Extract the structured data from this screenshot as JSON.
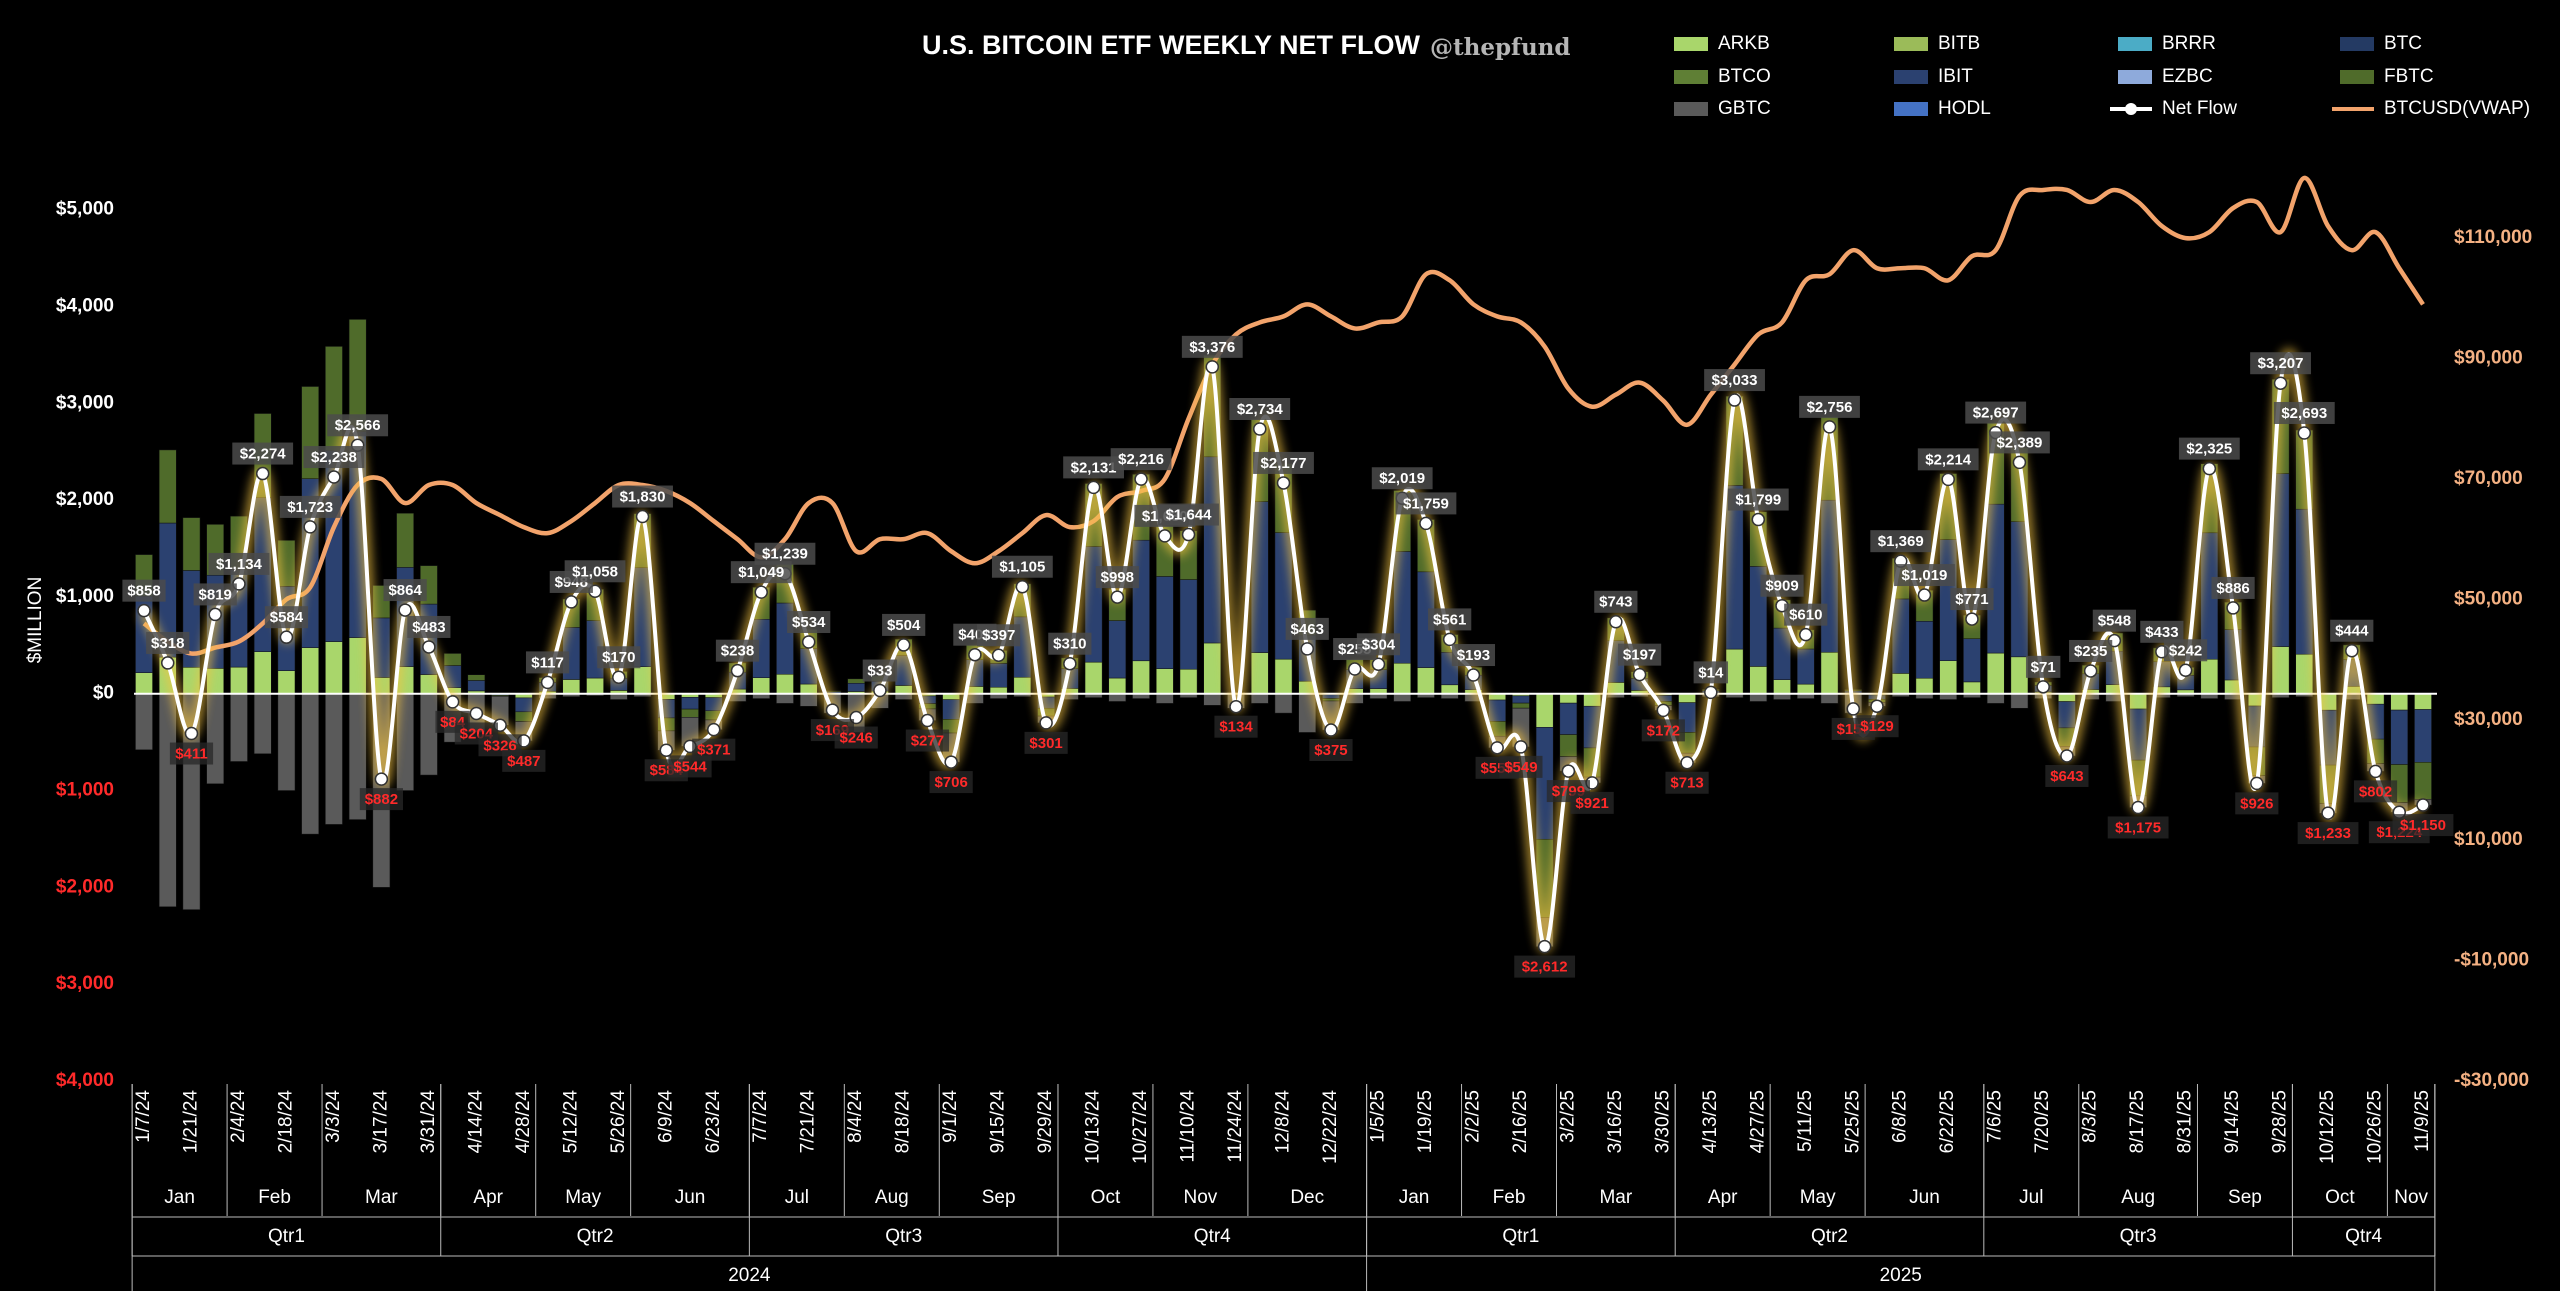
{
  "chart_data": {
    "type": "combo",
    "title": "U.S. BITCOIN ETF WEEKLY NET FLOW",
    "subtitle": "@thepfund",
    "y_label": "$MILLION",
    "categories": [
      "1/7/24",
      null,
      "1/21/24",
      null,
      "2/4/24",
      null,
      "2/18/24",
      null,
      "3/3/24",
      null,
      "3/17/24",
      null,
      "3/31/24",
      null,
      "4/14/24",
      null,
      "4/28/24",
      null,
      "5/12/24",
      null,
      "5/26/24",
      null,
      "6/9/24",
      null,
      "6/23/24",
      null,
      "7/7/24",
      null,
      "7/21/24",
      null,
      "8/4/24",
      null,
      "8/18/24",
      null,
      "9/1/24",
      null,
      "9/15/24",
      null,
      "9/29/24",
      null,
      "10/13/24",
      null,
      "10/27/24",
      null,
      "11/10/24",
      null,
      "11/24/24",
      null,
      "12/8/24",
      null,
      "12/22/24",
      null,
      "1/5/25",
      null,
      "1/19/25",
      null,
      "2/2/25",
      null,
      "2/16/25",
      null,
      "3/2/25",
      null,
      "3/16/25",
      null,
      "3/30/25",
      null,
      "4/13/25",
      null,
      "4/27/25",
      null,
      "5/11/25",
      null,
      "5/25/25",
      null,
      "6/8/25",
      null,
      "6/22/25",
      null,
      "7/6/25",
      null,
      "7/20/25",
      null,
      "8/3/25",
      null,
      "8/17/25",
      null,
      "8/31/25",
      null,
      "9/14/25",
      null,
      "9/28/25",
      null,
      "10/12/25",
      null,
      "10/26/25",
      null,
      "11/9/25"
    ],
    "months": [
      "Jan",
      "Feb",
      "Mar",
      "Apr",
      "May",
      "Jun",
      "Jul",
      "Aug",
      "Sep",
      "Oct",
      "Nov",
      "Dec",
      "Jan",
      "Feb",
      "Mar",
      "Apr",
      "May",
      "Jun",
      "Jul",
      "Aug",
      "Sep",
      "Oct",
      "Nov"
    ],
    "quarters": [
      "Qtr1",
      "Qtr2",
      "Qtr3",
      "Qtr4",
      "Qtr1",
      "Qtr2",
      "Qtr3",
      "Qtr4"
    ],
    "years": [
      "2024",
      "2025"
    ],
    "ylim": [
      -4000,
      5750
    ],
    "yticks": [
      {
        "value": -4000,
        "label": "$4,000"
      },
      {
        "value": -3000,
        "label": "$3,000"
      },
      {
        "value": -2000,
        "label": "$2,000"
      },
      {
        "value": -1000,
        "label": "$1,000"
      },
      {
        "value": 0,
        "label": "$0"
      },
      {
        "value": 1000,
        "label": "$1,000"
      },
      {
        "value": 2000,
        "label": "$2,000"
      },
      {
        "value": 3000,
        "label": "$3,000"
      },
      {
        "value": 4000,
        "label": "$4,000"
      },
      {
        "value": 5000,
        "label": "$5,000"
      }
    ],
    "y2lim": [
      -30000,
      126800
    ],
    "y2ticks": [
      {
        "value": -30000,
        "label": "-$30,000"
      },
      {
        "value": -10000,
        "label": "-$10,000"
      },
      {
        "value": 10000,
        "label": "$10,000"
      },
      {
        "value": 30000,
        "label": "$30,000"
      },
      {
        "value": 50000,
        "label": "$50,000"
      },
      {
        "value": 70000,
        "label": "$70,000"
      },
      {
        "value": 90000,
        "label": "$90,000"
      },
      {
        "value": 110000,
        "label": "$110,000"
      }
    ],
    "grid": false,
    "negative_color": "#ff2a2a",
    "series": [
      {
        "name": "ARKB",
        "type": "bar",
        "color": "#a9d66b",
        "values": [
          217,
          378,
          273,
          262,
          275,
          434,
          238,
          476,
          538,
          580,
          168,
          280,
          198,
          62,
          29,
          -4,
          -43,
          25,
          147,
          162,
          34,
          279,
          -58,
          -37,
          -40,
          48,
          165,
          201,
          100,
          5,
          23,
          27,
          85,
          -23,
          -61,
          75,
          67,
          170,
          -34,
          55,
          326,
          162,
          340,
          259,
          253,
          524,
          2,
          425,
          357,
          129,
          -11,
          53,
          53,
          315,
          270,
          92,
          41,
          -65,
          -22,
          -347,
          -97,
          -129,
          117,
          34,
          -18,
          -92,
          7,
          461,
          282,
          145,
          99,
          428,
          6,
          -13,
          210,
          160,
          341,
          122,
          420,
          381,
          18,
          -81,
          44,
          94,
          -158,
          71,
          40,
          356,
          142,
          -127,
          487,
          408,
          -170,
          76,
          -108,
          -169,
          -163
        ]
      },
      {
        "name": "IBIT",
        "type": "bar",
        "color": "#2b4170",
        "values": [
          790,
          1385,
          1000,
          962,
          1009,
          1592,
          871,
          1745,
          1973,
          2126,
          615,
          1025,
          728,
          229,
          108,
          -13,
          -144,
          92,
          538,
          593,
          127,
          1023,
          -192,
          -122,
          -136,
          175,
          604,
          736,
          365,
          17,
          85,
          101,
          310,
          -79,
          -203,
          277,
          246,
          624,
          -116,
          204,
          1194,
          593,
          1246,
          952,
          926,
          1923,
          9,
          1559,
          1307,
          475,
          -38,
          195,
          195,
          1154,
          989,
          336,
          150,
          -220,
          -75,
          -1156,
          -325,
          -431,
          431,
          125,
          -61,
          -307,
          24,
          1690,
          1033,
          533,
          363,
          1571,
          24,
          -45,
          769,
          588,
          1251,
          446,
          1538,
          1396,
          67,
          -272,
          162,
          345,
          -528,
          260,
          150,
          1306,
          520,
          -423,
          1786,
          1498,
          -567,
          277,
          -361,
          -562,
          -545
        ]
      },
      {
        "name": "FBTC",
        "type": "bar",
        "color": "#4f6b2a",
        "values": [
          430,
          755,
          546,
          525,
          550,
          868,
          475,
          952,
          1076,
          1160,
          335,
          559,
          397,
          125,
          59,
          -9,
          -100,
          50,
          293,
          323,
          69,
          558,
          -134,
          -85,
          -95,
          95,
          330,
          402,
          199,
          9,
          46,
          55,
          169,
          -55,
          -142,
          151,
          134,
          341,
          -81,
          111,
          651,
          323,
          680,
          519,
          505,
          1049,
          5,
          850,
          713,
          259,
          -26,
          107,
          106,
          630,
          540,
          183,
          82,
          -154,
          -52,
          -809,
          -227,
          -301,
          235,
          68,
          -43,
          -215,
          13,
          922,
          564,
          291,
          198,
          857,
          13,
          -31,
          420,
          321,
          682,
          243,
          839,
          762,
          36,
          -190,
          89,
          188,
          -369,
          142,
          82,
          713,
          284,
          -296,
          974,
          817,
          -397,
          151,
          -253,
          -393,
          -382
        ]
      },
      {
        "name": "GBTC",
        "type": "bar",
        "color": "#5a5a5a",
        "values": [
          -579,
          -2200,
          -2230,
          -930,
          -700,
          -620,
          -1000,
          -1450,
          -1350,
          -1300,
          -2000,
          -1000,
          -840,
          -500,
          -400,
          -300,
          -200,
          -50,
          -30,
          -20,
          -60,
          -30,
          -200,
          -300,
          -100,
          -80,
          -50,
          -100,
          -130,
          -200,
          -400,
          -150,
          -60,
          -120,
          -300,
          -100,
          -50,
          -30,
          -70,
          -60,
          -40,
          -80,
          -50,
          -100,
          -40,
          -120,
          -150,
          -100,
          -200,
          -400,
          -300,
          -100,
          -50,
          -80,
          -40,
          -50,
          -80,
          -120,
          -400,
          -300,
          -150,
          -60,
          -40,
          -30,
          -50,
          -100,
          -30,
          -40,
          -80,
          -60,
          -50,
          -100,
          -200,
          -40,
          -30,
          -50,
          -60,
          -40,
          -100,
          -150,
          -50,
          -100,
          -60,
          -80,
          -120,
          -40,
          -30,
          -50,
          -60,
          -80,
          -40,
          -30,
          -100,
          -60,
          -80,
          -100,
          -60
        ]
      },
      {
        "name": "Net Flow",
        "type": "line",
        "color": "#ffffff",
        "markers": true,
        "values": [
          858,
          318,
          -411,
          819,
          1134,
          2274,
          584,
          1723,
          2238,
          2566,
          -882,
          864,
          483,
          -84,
          -204,
          -326,
          -487,
          117,
          948,
          1058,
          170,
          1830,
          -584,
          -544,
          -371,
          238,
          1049,
          1239,
          534,
          -169,
          -246,
          33,
          504,
          -277,
          -706,
          403,
          397,
          1105,
          -301,
          310,
          2131,
          998,
          2216,
          1630,
          1644,
          3376,
          -134,
          2734,
          2177,
          463,
          -375,
          255,
          304,
          2019,
          1759,
          561,
          193,
          -559,
          -549,
          -2612,
          -799,
          -921,
          743,
          197,
          -172,
          -713,
          14,
          3033,
          1799,
          909,
          610,
          2756,
          -157,
          -129,
          1369,
          1019,
          2214,
          771,
          2697,
          2389,
          71,
          -643,
          235,
          548,
          -1175,
          433,
          242,
          2325,
          886,
          -926,
          3207,
          2693,
          -1233,
          444,
          -802,
          -1224,
          -1150
        ],
        "value_labels": [
          "$858",
          "$318",
          "$411",
          "$819",
          "$1,134",
          "$2,274",
          "$584",
          "$1,723",
          "$2,238",
          "$2,566",
          "$882",
          "$864",
          "$483",
          "$84",
          "$204",
          "$326",
          "$487",
          "$117",
          "$948",
          "$1,058",
          "$170",
          "$1,830",
          "$584",
          "$544",
          "$371",
          "$238",
          "$1,049",
          "$1,239",
          "$534",
          "$169",
          "$246",
          "$33",
          "$504",
          "$277",
          "$706",
          "$403",
          "$397",
          "$1,105",
          "$301",
          "$310",
          "$2,131",
          "$998",
          "$2,216",
          "$1,630",
          "$1,644",
          "$3,376",
          "$134",
          "$2,734",
          "$2,177",
          "$463",
          "$375",
          "$255",
          "$304",
          "$2,019",
          "$1,759",
          "$561",
          "$193",
          "$559",
          "$549",
          "$2,612",
          "$799",
          "$921",
          "$743",
          "$197",
          "$172",
          "$713",
          "$14",
          "$3,033",
          "$1,799",
          "$909",
          "$610",
          "$2,756",
          "$157",
          "$129",
          "$1,369",
          "$1,019",
          "$2,214",
          "$771",
          "$2,697",
          "$2,389",
          "$71",
          "$643",
          "$235",
          "$548",
          "$1,175",
          "$433",
          "$242",
          "$2,325",
          "$886",
          "$926",
          "$3,207",
          "$2,693",
          "$1,233",
          "$444",
          "$802",
          "$1,224",
          "$1,150"
        ]
      },
      {
        "name": "BTCUSD(VWAP)",
        "type": "line",
        "axis": "y2",
        "color": "#f2a36b",
        "smooth": true,
        "values": [
          46000,
          43000,
          41000,
          42000,
          43000,
          46000,
          50000,
          52000,
          62000,
          69000,
          70000,
          66000,
          69000,
          69000,
          66000,
          64000,
          62000,
          61000,
          63000,
          66000,
          69000,
          69000,
          68000,
          66000,
          63000,
          60000,
          57000,
          60000,
          66000,
          66000,
          58000,
          60000,
          60000,
          61000,
          58000,
          56000,
          58000,
          61000,
          64000,
          62000,
          63000,
          67000,
          68000,
          70000,
          80000,
          89000,
          94000,
          96000,
          97000,
          99000,
          97000,
          95000,
          96000,
          97000,
          104000,
          103000,
          99000,
          97000,
          96000,
          92000,
          85000,
          82000,
          84000,
          86000,
          83000,
          79000,
          84000,
          89000,
          94000,
          96000,
          103000,
          104000,
          108000,
          105000,
          105000,
          105000,
          103000,
          107000,
          108000,
          117000,
          118000,
          118000,
          116000,
          118000,
          116000,
          112000,
          110000,
          111000,
          115000,
          116000,
          111000,
          120000,
          112000,
          108000,
          111000,
          105000,
          99000
        ]
      }
    ],
    "other_etfs": [
      {
        "name": "BITB",
        "color": "#9bbb59"
      },
      {
        "name": "BRRR",
        "color": "#4bacc6"
      },
      {
        "name": "BTC",
        "color": "#243a63"
      },
      {
        "name": "BTCO",
        "color": "#5f7f35"
      },
      {
        "name": "EZBC",
        "color": "#8eaadb"
      },
      {
        "name": "HODL",
        "color": "#4472c4"
      }
    ]
  }
}
